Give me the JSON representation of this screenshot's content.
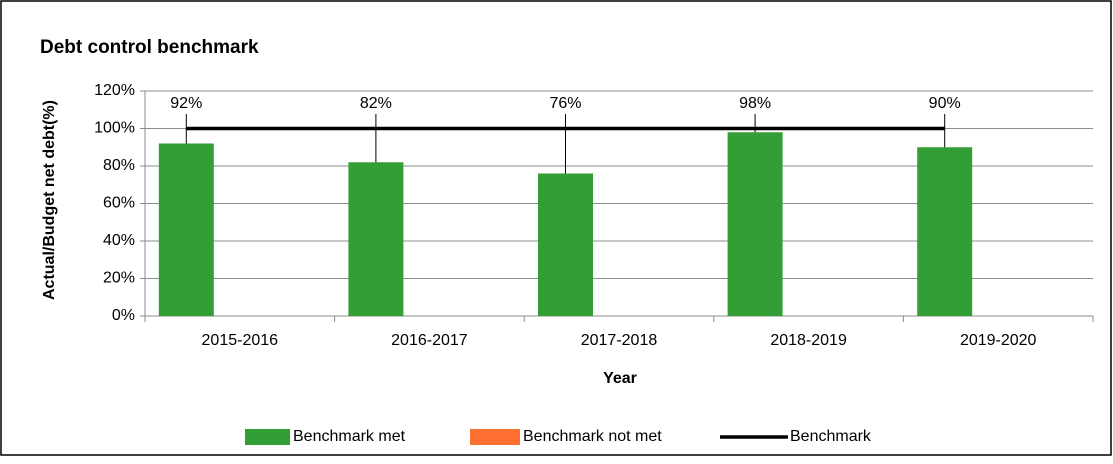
{
  "chart_data": {
    "type": "bar",
    "title": "Debt control benchmark",
    "x_label": "Year",
    "y_label": "Actual/Budget net debt(%)",
    "categories": [
      "2015-2016",
      "2016-2017",
      "2017-2018",
      "2018-2019",
      "2019-2020"
    ],
    "series": [
      {
        "name": "Benchmark met",
        "color": "#339e35",
        "values": [
          92,
          82,
          76,
          98,
          90
        ],
        "value_labels": [
          "92%",
          "82%",
          "76%",
          "98%",
          "90%"
        ]
      },
      {
        "name": "Benchmark not met",
        "color": "#ff7033",
        "values": [
          0,
          0,
          0,
          0,
          0
        ]
      },
      {
        "name": "Benchmark",
        "type": "line",
        "color": "#000000",
        "values": [
          100,
          100,
          100,
          100,
          100
        ]
      }
    ],
    "ylim": [
      0,
      120
    ],
    "yticks": [
      {
        "value": 0,
        "label": "0%"
      },
      {
        "value": 20,
        "label": "20%"
      },
      {
        "value": 40,
        "label": "40%"
      },
      {
        "value": 60,
        "label": "60%"
      },
      {
        "value": 80,
        "label": "80%"
      },
      {
        "value": 100,
        "label": "100%"
      },
      {
        "value": 120,
        "label": "120%"
      }
    ],
    "grid": true,
    "legend": "bottom"
  }
}
